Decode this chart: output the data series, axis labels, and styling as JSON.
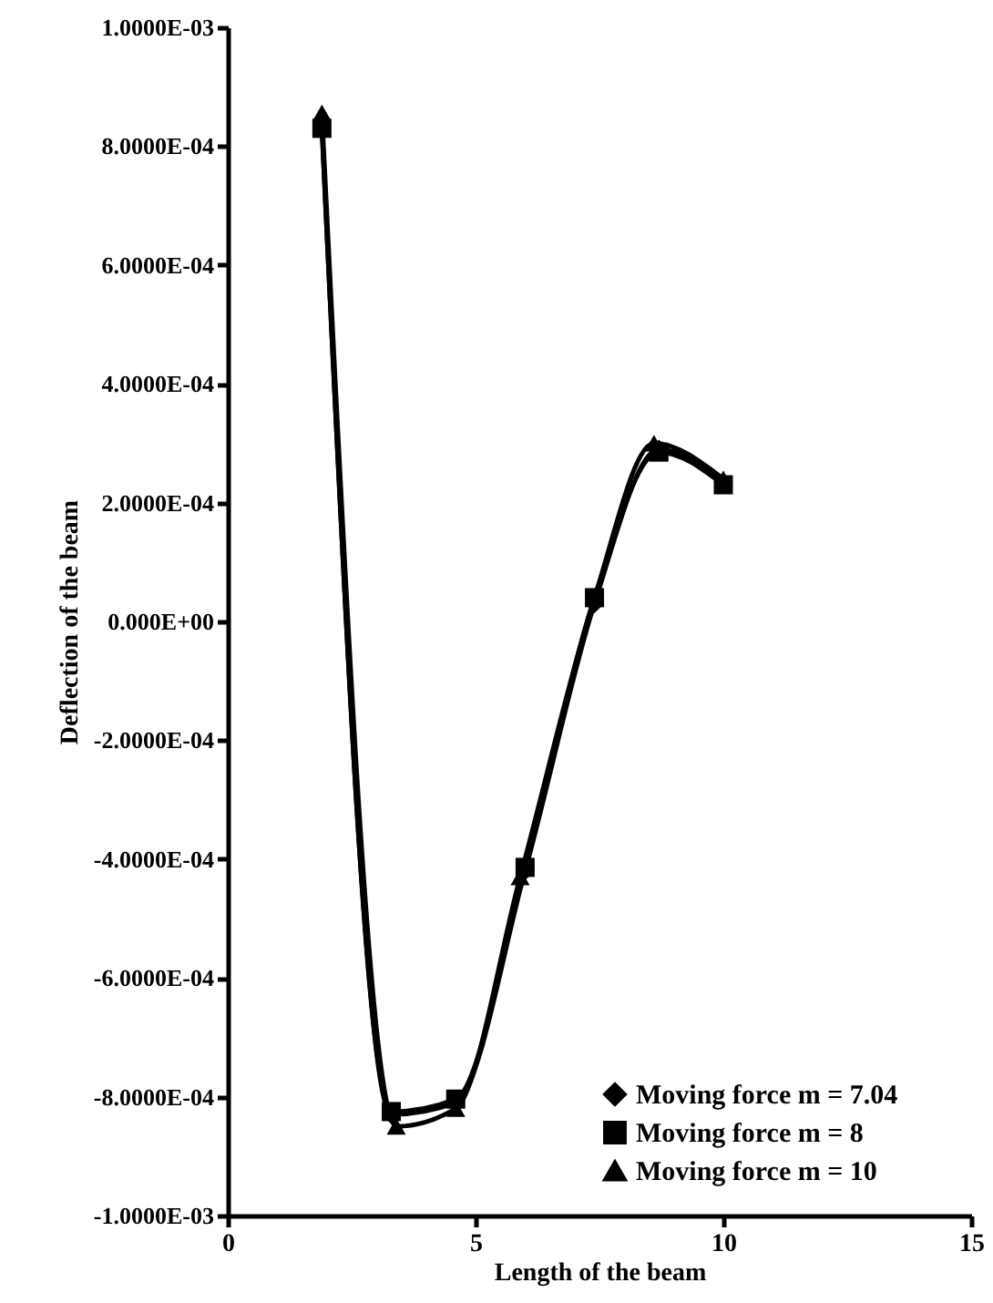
{
  "chart_data": {
    "type": "line",
    "xlabel": "Length of the beam",
    "ylabel": "Deflection of the beam",
    "xlim": [
      0,
      15
    ],
    "xticks": [
      0,
      5,
      10,
      15
    ],
    "ylim": [
      -0.001,
      0.001
    ],
    "yticks": [
      {
        "value": -0.001,
        "label": "-1.0000E-03"
      },
      {
        "value": -0.0008,
        "label": "-8.0000E-04"
      },
      {
        "value": -0.0006,
        "label": "-6.0000E-04"
      },
      {
        "value": -0.0004,
        "label": "-4.0000E-04"
      },
      {
        "value": -0.0002,
        "label": "-2.0000E-04"
      },
      {
        "value": 0,
        "label": "0.000E+00"
      },
      {
        "value": 0.0002,
        "label": "2.0000E-04"
      },
      {
        "value": 0.0004,
        "label": "4.0000E-04"
      },
      {
        "value": 0.0006,
        "label": "6.0000E-04"
      },
      {
        "value": 0.0008,
        "label": "8.0000E-04"
      },
      {
        "value": 0.001,
        "label": "1.0000E-03"
      }
    ],
    "grid": false,
    "legend": "bottom right",
    "line_style": "solid",
    "series": [
      {
        "name": "Moving force m = 7.04",
        "color": "#000000",
        "marker": "diamond",
        "x": [
          1.9,
          3.3,
          4.6,
          6.0,
          7.4,
          8.7,
          10.0
        ],
        "values": [
          0.00083,
          -0.00083,
          -0.00081,
          -0.00042,
          3e-05,
          0.00029,
          0.000233
        ]
      },
      {
        "name": "Moving force m = 8",
        "color": "#000000",
        "marker": "square",
        "x": [
          1.9,
          3.3,
          4.6,
          6.0,
          7.4,
          8.7,
          10.0
        ],
        "values": [
          0.00083,
          -0.000825,
          -0.000804,
          -0.000414,
          4e-05,
          0.000285,
          0.00023
        ]
      },
      {
        "name": "Moving force m = 10",
        "color": "#000000",
        "marker": "triangle",
        "x": [
          1.9,
          3.4,
          4.6,
          5.9,
          7.4,
          8.6,
          10.0
        ],
        "values": [
          0.000856,
          -0.00085,
          -0.00082,
          -0.00043,
          4e-05,
          0.0003,
          0.00024
        ]
      }
    ]
  }
}
